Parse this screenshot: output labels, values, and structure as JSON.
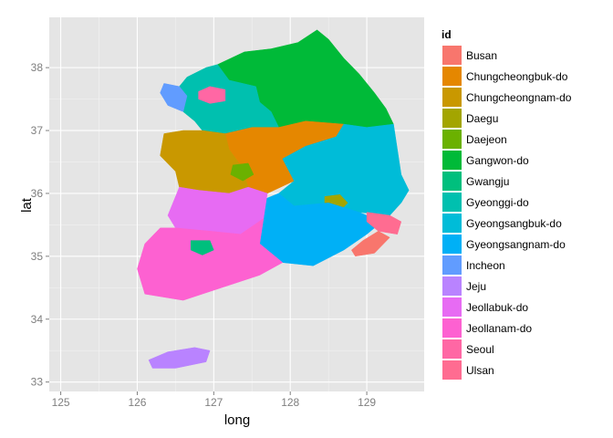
{
  "chart_data": {
    "type": "map",
    "xlabel": "long",
    "ylabel": "lat",
    "xlim": [
      124.85,
      129.75
    ],
    "ylim": [
      32.85,
      38.8
    ],
    "x_ticks": [
      125,
      126,
      127,
      128,
      129
    ],
    "y_ticks": [
      33,
      34,
      35,
      36,
      37,
      38
    ],
    "grid": true,
    "legend": {
      "title": "id",
      "placement": "right",
      "entries": [
        {
          "name": "Busan",
          "color": "#F8766D"
        },
        {
          "name": "Chungcheongbuk-do",
          "color": "#E58700"
        },
        {
          "name": "Chungcheongnam-do",
          "color": "#C99800"
        },
        {
          "name": "Daegu",
          "color": "#A3A500"
        },
        {
          "name": "Daejeon",
          "color": "#6BB100"
        },
        {
          "name": "Gangwon-do",
          "color": "#00BA38"
        },
        {
          "name": "Gwangju",
          "color": "#00BF7D"
        },
        {
          "name": "Gyeonggi-do",
          "color": "#00C0AF"
        },
        {
          "name": "Gyeongsangbuk-do",
          "color": "#00BCD8"
        },
        {
          "name": "Gyeongsangnam-do",
          "color": "#00B0F6"
        },
        {
          "name": "Incheon",
          "color": "#619CFF"
        },
        {
          "name": "Jeju",
          "color": "#B983FF"
        },
        {
          "name": "Jeollabuk-do",
          "color": "#E76BF3"
        },
        {
          "name": "Jeollanam-do",
          "color": "#FD61D1"
        },
        {
          "name": "Seoul",
          "color": "#FF67A4"
        },
        {
          "name": "Ulsan",
          "color": "#FF6C91"
        }
      ]
    },
    "regions": [
      {
        "name": "Gangwon-do",
        "color": "#00BA38",
        "polygon": [
          [
            127.05,
            38.05
          ],
          [
            127.4,
            38.25
          ],
          [
            127.75,
            38.3
          ],
          [
            128.1,
            38.4
          ],
          [
            128.35,
            38.6
          ],
          [
            128.5,
            38.45
          ],
          [
            128.7,
            38.15
          ],
          [
            128.9,
            37.9
          ],
          [
            129.1,
            37.6
          ],
          [
            129.25,
            37.35
          ],
          [
            129.35,
            37.1
          ],
          [
            129.0,
            37.05
          ],
          [
            128.7,
            37.1
          ],
          [
            128.2,
            37.15
          ],
          [
            127.85,
            37.05
          ],
          [
            127.75,
            37.3
          ],
          [
            127.6,
            37.45
          ],
          [
            127.55,
            37.7
          ],
          [
            127.2,
            37.8
          ],
          [
            127.05,
            38.05
          ]
        ]
      },
      {
        "name": "Gyeonggi-do",
        "color": "#00C0AF",
        "polygon": [
          [
            126.65,
            37.85
          ],
          [
            126.9,
            38.0
          ],
          [
            127.05,
            38.05
          ],
          [
            127.2,
            37.8
          ],
          [
            127.55,
            37.7
          ],
          [
            127.6,
            37.45
          ],
          [
            127.75,
            37.3
          ],
          [
            127.85,
            37.05
          ],
          [
            127.5,
            37.05
          ],
          [
            127.15,
            36.95
          ],
          [
            126.85,
            37.0
          ],
          [
            126.75,
            37.15
          ],
          [
            126.6,
            37.3
          ],
          [
            126.65,
            37.55
          ],
          [
            126.55,
            37.7
          ],
          [
            126.65,
            37.85
          ]
        ]
      },
      {
        "name": "Incheon",
        "color": "#619CFF",
        "polygon": [
          [
            126.35,
            37.75
          ],
          [
            126.55,
            37.7
          ],
          [
            126.65,
            37.55
          ],
          [
            126.6,
            37.3
          ],
          [
            126.4,
            37.4
          ],
          [
            126.3,
            37.6
          ],
          [
            126.35,
            37.75
          ]
        ]
      },
      {
        "name": "Seoul",
        "color": "#FF67A4",
        "polygon": [
          [
            126.8,
            37.62
          ],
          [
            126.95,
            37.7
          ],
          [
            127.15,
            37.65
          ],
          [
            127.15,
            37.47
          ],
          [
            126.95,
            37.43
          ],
          [
            126.8,
            37.5
          ],
          [
            126.8,
            37.62
          ]
        ]
      },
      {
        "name": "Chungcheongbuk-do",
        "color": "#E58700",
        "polygon": [
          [
            127.15,
            36.95
          ],
          [
            127.5,
            37.05
          ],
          [
            127.85,
            37.05
          ],
          [
            128.2,
            37.15
          ],
          [
            128.7,
            37.1
          ],
          [
            128.6,
            36.9
          ],
          [
            128.2,
            36.75
          ],
          [
            127.9,
            36.55
          ],
          [
            128.05,
            36.2
          ],
          [
            127.7,
            36.0
          ],
          [
            127.45,
            36.1
          ],
          [
            127.35,
            36.45
          ],
          [
            127.2,
            36.7
          ],
          [
            127.15,
            36.95
          ]
        ]
      },
      {
        "name": "Chungcheongnam-do",
        "color": "#C99800",
        "polygon": [
          [
            126.35,
            36.95
          ],
          [
            126.6,
            37.0
          ],
          [
            126.85,
            37.0
          ],
          [
            127.15,
            36.95
          ],
          [
            127.2,
            36.7
          ],
          [
            127.35,
            36.45
          ],
          [
            127.45,
            36.1
          ],
          [
            127.2,
            36.0
          ],
          [
            126.8,
            36.05
          ],
          [
            126.55,
            36.1
          ],
          [
            126.5,
            36.35
          ],
          [
            126.3,
            36.6
          ],
          [
            126.35,
            36.95
          ]
        ]
      },
      {
        "name": "Daejeon",
        "color": "#6BB100",
        "polygon": [
          [
            127.25,
            36.45
          ],
          [
            127.45,
            36.48
          ],
          [
            127.52,
            36.3
          ],
          [
            127.38,
            36.2
          ],
          [
            127.22,
            36.3
          ],
          [
            127.25,
            36.45
          ]
        ]
      },
      {
        "name": "Gyeongsangbuk-do",
        "color": "#00BCD8",
        "polygon": [
          [
            127.9,
            36.55
          ],
          [
            128.2,
            36.75
          ],
          [
            128.6,
            36.9
          ],
          [
            128.7,
            37.1
          ],
          [
            129.0,
            37.05
          ],
          [
            129.35,
            37.1
          ],
          [
            129.4,
            36.7
          ],
          [
            129.45,
            36.3
          ],
          [
            129.55,
            36.05
          ],
          [
            129.45,
            35.85
          ],
          [
            129.3,
            35.65
          ],
          [
            128.9,
            35.7
          ],
          [
            128.5,
            35.85
          ],
          [
            128.05,
            35.8
          ],
          [
            127.85,
            36.0
          ],
          [
            128.05,
            36.2
          ],
          [
            127.9,
            36.55
          ]
        ]
      },
      {
        "name": "Daegu",
        "color": "#A3A500",
        "polygon": [
          [
            128.45,
            35.95
          ],
          [
            128.65,
            35.98
          ],
          [
            128.75,
            35.85
          ],
          [
            128.65,
            35.72
          ],
          [
            128.45,
            35.75
          ],
          [
            128.45,
            35.95
          ]
        ]
      },
      {
        "name": "Gyeongsangnam-do",
        "color": "#00B0F6",
        "polygon": [
          [
            127.65,
            35.9
          ],
          [
            127.85,
            36.0
          ],
          [
            128.05,
            35.8
          ],
          [
            128.5,
            35.85
          ],
          [
            128.9,
            35.7
          ],
          [
            129.2,
            35.55
          ],
          [
            129.0,
            35.35
          ],
          [
            128.7,
            35.1
          ],
          [
            128.3,
            34.85
          ],
          [
            127.9,
            34.9
          ],
          [
            127.6,
            35.2
          ],
          [
            127.65,
            35.6
          ],
          [
            127.65,
            35.9
          ]
        ]
      },
      {
        "name": "Ulsan",
        "color": "#FF6C91",
        "polygon": [
          [
            129.0,
            35.7
          ],
          [
            129.3,
            35.65
          ],
          [
            129.45,
            35.55
          ],
          [
            129.4,
            35.35
          ],
          [
            129.15,
            35.4
          ],
          [
            129.0,
            35.55
          ],
          [
            129.0,
            35.7
          ]
        ]
      },
      {
        "name": "Busan",
        "color": "#F8766D",
        "polygon": [
          [
            128.8,
            35.1
          ],
          [
            128.95,
            35.25
          ],
          [
            129.15,
            35.4
          ],
          [
            129.3,
            35.3
          ],
          [
            129.1,
            35.05
          ],
          [
            128.85,
            35.0
          ],
          [
            128.8,
            35.1
          ]
        ]
      },
      {
        "name": "Jeollabuk-do",
        "color": "#E76BF3",
        "polygon": [
          [
            126.55,
            36.1
          ],
          [
            126.8,
            36.05
          ],
          [
            127.2,
            36.0
          ],
          [
            127.45,
            36.1
          ],
          [
            127.7,
            36.0
          ],
          [
            127.65,
            35.6
          ],
          [
            127.35,
            35.35
          ],
          [
            126.95,
            35.4
          ],
          [
            126.5,
            35.45
          ],
          [
            126.4,
            35.65
          ],
          [
            126.55,
            36.1
          ]
        ]
      },
      {
        "name": "Jeollanam-do",
        "color": "#FD61D1",
        "polygon": [
          [
            126.3,
            35.45
          ],
          [
            126.5,
            35.45
          ],
          [
            126.95,
            35.4
          ],
          [
            127.35,
            35.35
          ],
          [
            127.65,
            35.6
          ],
          [
            127.6,
            35.2
          ],
          [
            127.9,
            34.9
          ],
          [
            127.6,
            34.7
          ],
          [
            127.1,
            34.5
          ],
          [
            126.6,
            34.3
          ],
          [
            126.1,
            34.4
          ],
          [
            126.0,
            34.8
          ],
          [
            126.1,
            35.2
          ],
          [
            126.3,
            35.45
          ]
        ]
      },
      {
        "name": "Gwangju",
        "color": "#00BF7D",
        "polygon": [
          [
            126.7,
            35.25
          ],
          [
            126.95,
            35.25
          ],
          [
            127.0,
            35.1
          ],
          [
            126.85,
            35.02
          ],
          [
            126.7,
            35.1
          ],
          [
            126.7,
            35.25
          ]
        ]
      },
      {
        "name": "Jeju",
        "color": "#B983FF",
        "polygon": [
          [
            126.15,
            33.35
          ],
          [
            126.4,
            33.48
          ],
          [
            126.75,
            33.55
          ],
          [
            126.95,
            33.5
          ],
          [
            126.9,
            33.32
          ],
          [
            126.5,
            33.22
          ],
          [
            126.2,
            33.22
          ],
          [
            126.15,
            33.35
          ]
        ]
      }
    ]
  }
}
